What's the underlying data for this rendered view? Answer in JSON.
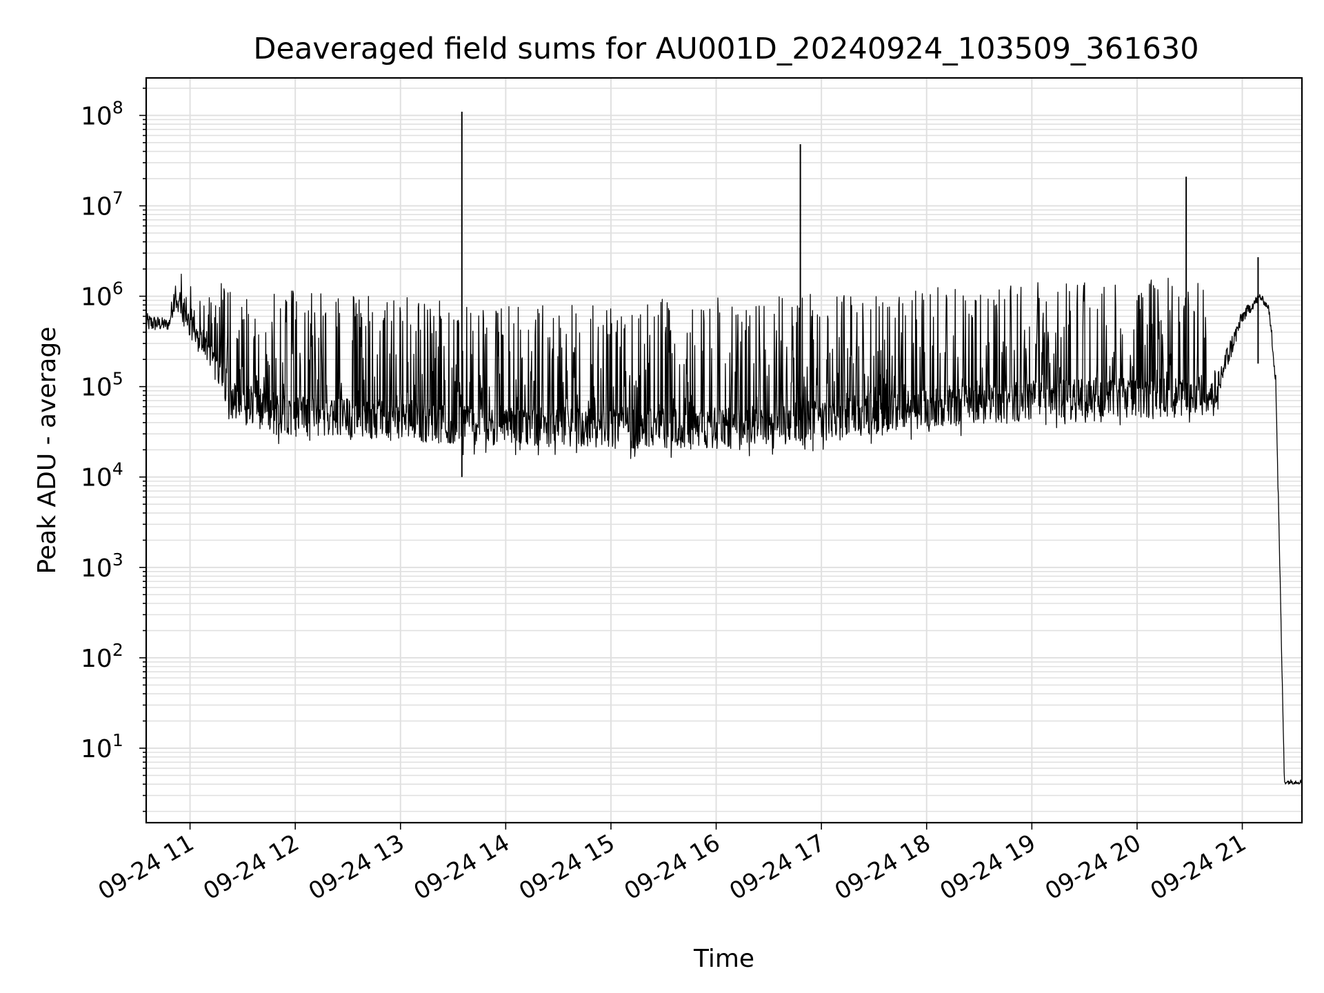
{
  "chart_data": {
    "type": "line",
    "title": "Deaveraged field sums for AU001D_20240924_103509_361630",
    "xlabel": "Time",
    "ylabel": "Peak ADU - average",
    "yscale": "log",
    "ylim": [
      1.5,
      260000000
    ],
    "xlim": [
      "2024-09-24 10:35",
      "2024-09-24 21:34"
    ],
    "grid": true,
    "x_ticks": [
      {
        "value": "2024-09-24 11:00",
        "label": "09-24 11"
      },
      {
        "value": "2024-09-24 12:00",
        "label": "09-24 12"
      },
      {
        "value": "2024-09-24 13:00",
        "label": "09-24 13"
      },
      {
        "value": "2024-09-24 14:00",
        "label": "09-24 14"
      },
      {
        "value": "2024-09-24 15:00",
        "label": "09-24 15"
      },
      {
        "value": "2024-09-24 16:00",
        "label": "09-24 16"
      },
      {
        "value": "2024-09-24 17:00",
        "label": "09-24 17"
      },
      {
        "value": "2024-09-24 18:00",
        "label": "09-24 18"
      },
      {
        "value": "2024-09-24 19:00",
        "label": "09-24 19"
      },
      {
        "value": "2024-09-24 20:00",
        "label": "09-24 20"
      },
      {
        "value": "2024-09-24 21:00",
        "label": "09-24 21"
      }
    ],
    "y_ticks": [
      {
        "value": 10,
        "base": "10",
        "exp": "1"
      },
      {
        "value": 100,
        "base": "10",
        "exp": "2"
      },
      {
        "value": 1000,
        "base": "10",
        "exp": "3"
      },
      {
        "value": 10000,
        "base": "10",
        "exp": "4"
      },
      {
        "value": 100000,
        "base": "10",
        "exp": "5"
      },
      {
        "value": 1000000,
        "base": "10",
        "exp": "6"
      },
      {
        "value": 10000000,
        "base": "10",
        "exp": "7"
      },
      {
        "value": 100000000,
        "base": "10",
        "exp": "8"
      }
    ],
    "series": [
      {
        "color": "#000000",
        "envelope": [
          {
            "x": "2024-09-24 10:35",
            "low": 400000,
            "high": 650000
          },
          {
            "x": "2024-09-24 10:48",
            "low": 420000,
            "high": 560000
          },
          {
            "x": "2024-09-24 10:52",
            "low": 800000,
            "high": 2000000
          },
          {
            "x": "2024-09-24 11:00",
            "low": 400000,
            "high": 1700000
          },
          {
            "x": "2024-09-24 11:12",
            "low": 150000,
            "high": 1500000
          },
          {
            "x": "2024-09-24 11:25",
            "low": 40000,
            "high": 1300000
          },
          {
            "x": "2024-09-24 11:45",
            "low": 32000,
            "high": 1200000
          },
          {
            "x": "2024-09-24 12:00",
            "low": 28000,
            "high": 1150000
          },
          {
            "x": "2024-09-24 12:30",
            "low": 27000,
            "high": 1050000
          },
          {
            "x": "2024-09-24 13:00",
            "low": 25000,
            "high": 1000000
          },
          {
            "x": "2024-09-24 13:30",
            "low": 23000,
            "high": 850000
          },
          {
            "x": "2024-09-24 14:00",
            "low": 22000,
            "high": 800000
          },
          {
            "x": "2024-09-24 15:00",
            "low": 21000,
            "high": 900000
          },
          {
            "x": "2024-09-24 16:00",
            "low": 20000,
            "high": 1000000
          },
          {
            "x": "2024-09-24 17:00",
            "low": 25000,
            "high": 1100000
          },
          {
            "x": "2024-09-24 17:30",
            "low": 30000,
            "high": 1300000
          },
          {
            "x": "2024-09-24 18:00",
            "low": 35000,
            "high": 1400000
          },
          {
            "x": "2024-09-24 19:00",
            "low": 42000,
            "high": 1500000
          },
          {
            "x": "2024-09-24 20:00",
            "low": 45000,
            "high": 1600000
          },
          {
            "x": "2024-09-24 20:37",
            "low": 45000,
            "high": 1600000
          },
          {
            "x": "2024-09-24 20:45",
            "low": 60000,
            "high": 150000
          },
          {
            "x": "2024-09-24 21:00",
            "low": 500000,
            "high": 700000
          },
          {
            "x": "2024-09-24 21:10",
            "low": 900000,
            "high": 1100000
          },
          {
            "x": "2024-09-24 21:15",
            "low": 700000,
            "high": 800000
          },
          {
            "x": "2024-09-24 21:19",
            "low": 100000,
            "high": 200000
          },
          {
            "x": "2024-09-24 21:24",
            "low": 4.0,
            "high": 4.5
          },
          {
            "x": "2024-09-24 21:34",
            "low": 4.0,
            "high": 4.5
          }
        ],
        "spikes": [
          {
            "x": "2024-09-24 13:35",
            "y": 110000000,
            "low": 10000
          },
          {
            "x": "2024-09-24 16:48",
            "y": 48000000,
            "low": 25000
          },
          {
            "x": "2024-09-24 20:28",
            "y": 21000000,
            "low": 60000
          },
          {
            "x": "2024-09-24 21:09",
            "y": 2700000,
            "low": 180000
          }
        ]
      }
    ]
  }
}
